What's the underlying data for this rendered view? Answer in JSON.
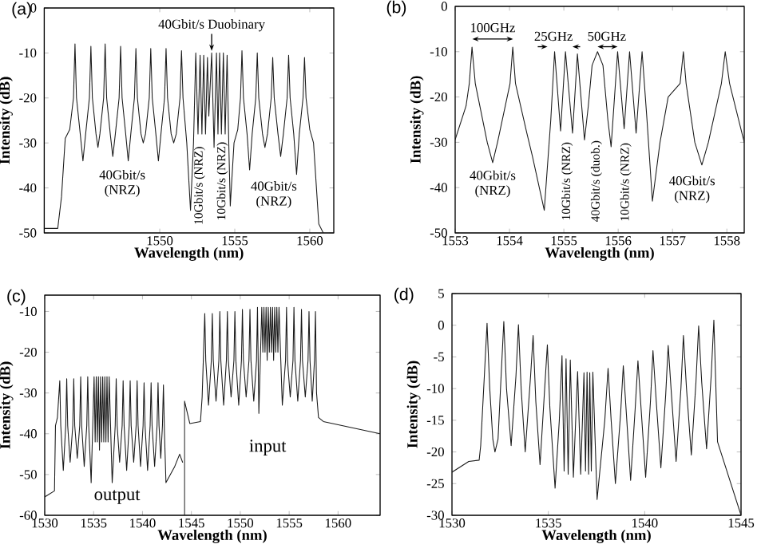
{
  "chart_data": [
    {
      "type": "line",
      "title": "(a)",
      "xlabel": "Wavelength (nm)",
      "ylabel": "Intensity (dB)",
      "xlim": [
        1542.3,
        1561.6
      ],
      "ylim": [
        -50,
        0
      ],
      "xticks": [
        1550,
        1555,
        1560
      ],
      "yticks": [
        -50,
        -40,
        -30,
        -20,
        -10,
        0
      ],
      "series": [
        {
          "color": "#1a1a1a",
          "x": [
            1542.3,
            1543.2,
            1543.45,
            1543.7,
            1544.0,
            1544.25,
            1544.35,
            1544.45,
            1544.7,
            1544.88,
            1545.06,
            1545.31,
            1545.41,
            1545.51,
            1545.75,
            1545.88,
            1546.01,
            1546.26,
            1546.36,
            1546.46,
            1546.7,
            1546.87,
            1547.04,
            1547.29,
            1547.39,
            1547.49,
            1547.73,
            1547.9,
            1548.07,
            1548.31,
            1548.41,
            1548.51,
            1548.75,
            1548.9,
            1549.05,
            1549.3,
            1549.4,
            1549.5,
            1549.74,
            1549.91,
            1550.08,
            1550.32,
            1550.42,
            1550.52,
            1550.76,
            1550.93,
            1551.1,
            1551.35,
            1551.45,
            1551.55,
            1551.8,
            1552.05,
            1552.25,
            1552.4,
            1552.55,
            1552.69,
            1552.81,
            1552.93,
            1553.05,
            1553.18,
            1553.27,
            1553.46,
            1553.62,
            1553.78,
            1553.88,
            1553.99,
            1554.11,
            1554.24,
            1554.36,
            1554.49,
            1554.6,
            1554.7,
            1554.95,
            1555.2,
            1555.38,
            1555.48,
            1555.58,
            1555.82,
            1555.99,
            1556.16,
            1556.4,
            1556.5,
            1556.6,
            1556.85,
            1557.01,
            1557.18,
            1557.43,
            1557.53,
            1557.63,
            1557.88,
            1558.06,
            1558.24,
            1558.49,
            1558.59,
            1558.69,
            1558.93,
            1559.12,
            1559.3,
            1559.55,
            1559.65,
            1559.75,
            1560.0,
            1560.25,
            1560.6,
            1560.9
          ],
          "values": [
            -49,
            -49,
            -42,
            -29,
            -27,
            -20,
            -8,
            -20,
            -28,
            -34,
            -28,
            -20,
            -8.5,
            -20,
            -28,
            -31,
            -28,
            -20,
            -8,
            -20,
            -28,
            -33,
            -28,
            -20,
            -8.5,
            -20,
            -28,
            -34,
            -28,
            -20,
            -9,
            -20,
            -28,
            -30,
            -28,
            -20,
            -9,
            -20,
            -28,
            -34,
            -28,
            -20,
            -9,
            -20,
            -28,
            -30,
            -28,
            -20,
            -9.5,
            -20,
            -30,
            -45,
            -30,
            -10,
            -28,
            -10.5,
            -28,
            -10.5,
            -28,
            -11,
            -24,
            -10,
            -31,
            -10,
            -28,
            -10,
            -28,
            -10,
            -28,
            -10.5,
            -30,
            -44,
            -30,
            -27,
            -20,
            -9.5,
            -20,
            -28,
            -36,
            -28,
            -20,
            -10,
            -20,
            -28,
            -31,
            -28,
            -20,
            -11,
            -20,
            -28,
            -33,
            -28,
            -20,
            -10.5,
            -20,
            -28,
            -37,
            -28,
            -20,
            -11,
            -20,
            -27,
            -30,
            -48,
            -50
          ]
        }
      ],
      "annotations": [
        {
          "text": "40Gbit/s Duobinary",
          "x": 1553.46,
          "y": -10
        },
        "40Gbit/s (NRZ)",
        "10Gbit/s (NRZ)",
        "10Gbit/s (NRZ)",
        "40Gbit/s (NRZ)"
      ]
    },
    {
      "type": "line",
      "title": "(b)",
      "xlabel": "Wavelength (nm)",
      "ylabel": "Intensity (dB)",
      "xlim": [
        1553,
        1558.32
      ],
      "ylim": [
        -50,
        0
      ],
      "xticks": [
        1553,
        1554,
        1555,
        1556,
        1557,
        1558
      ],
      "yticks": [
        -50,
        -40,
        -30,
        -20,
        -10,
        0
      ],
      "series": [
        {
          "color": "#1a1a1a",
          "x": [
            1553.0,
            1553.2,
            1553.26,
            1553.31,
            1553.37,
            1553.59,
            1553.69,
            1553.78,
            1554.01,
            1554.06,
            1554.11,
            1554.32,
            1554.42,
            1554.64,
            1554.76,
            1554.83,
            1554.94,
            1555.03,
            1555.16,
            1555.25,
            1555.38,
            1555.45,
            1555.52,
            1555.62,
            1555.72,
            1555.81,
            1555.87,
            1555.99,
            1556.11,
            1556.21,
            1556.33,
            1556.44,
            1556.53,
            1556.63,
            1556.77,
            1556.92,
            1557.14,
            1557.2,
            1557.25,
            1557.41,
            1557.54,
            1557.66,
            1557.9,
            1557.97,
            1558.05,
            1558.32
          ],
          "values": [
            -29.4,
            -22,
            -17,
            -9,
            -17,
            -30,
            -34.5,
            -30,
            -17,
            -9,
            -17,
            -28,
            -33,
            -45,
            -25,
            -10,
            -27.5,
            -10,
            -28,
            -10.5,
            -29.5,
            -22,
            -13,
            -10,
            -13,
            -25,
            -31,
            -10,
            -27,
            -10,
            -28,
            -10,
            -25,
            -43,
            -30,
            -20,
            -17,
            -10,
            -17,
            -30,
            -35,
            -30,
            -17,
            -10,
            -17,
            -30
          ]
        }
      ],
      "annotations": [
        "100GHz",
        "25GHz",
        "50GHz",
        "40Gbit/s (NRZ)",
        "10Gbit/s (NRZ)",
        "40Gbit/s (duob.)",
        "10Gbit/s (NRZ)",
        "40Gbit/s (NRZ)"
      ]
    },
    {
      "type": "line",
      "title": "(c)",
      "xlabel": "Wavelength (nm)",
      "ylabel": "Intensity (dB)",
      "xlim": [
        1530,
        1564.3
      ],
      "ylim": [
        -60,
        -6
      ],
      "xticks": [
        1530,
        1535,
        1540,
        1545,
        1550,
        1555,
        1560
      ],
      "yticks": [
        -60,
        -50,
        -40,
        -30,
        -20,
        -10
      ],
      "series": [
        {
          "color": "#1a1a1a",
          "x": [
            1530,
            1531.0,
            1531.1,
            1531.3,
            1531.54,
            1531.64,
            1531.9,
            1532.15,
            1532.25,
            1532.35,
            1532.6,
            1532.87,
            1532.97,
            1533.07,
            1533.33,
            1533.58,
            1533.68,
            1533.78,
            1534.04,
            1534.3,
            1534.4,
            1534.5,
            1534.75,
            1535.05,
            1535.16,
            1535.27,
            1535.38,
            1535.49,
            1535.6,
            1535.71,
            1535.82,
            1535.93,
            1536.04,
            1536.15,
            1536.26,
            1536.37,
            1536.48,
            1536.59,
            1536.9,
            1537.21,
            1537.31,
            1537.41,
            1537.66,
            1537.92,
            1538.02,
            1538.12,
            1538.38,
            1538.64,
            1538.74,
            1538.84,
            1539.1,
            1539.35,
            1539.45,
            1539.55,
            1539.8,
            1540.06,
            1540.16,
            1540.26,
            1540.52,
            1540.78,
            1540.88,
            1540.98,
            1541.24,
            1541.49,
            1541.59,
            1541.69,
            1541.87,
            1542.04,
            1542.14,
            1542.25,
            1542.4,
            1543.3,
            1543.8,
            1544.1
          ],
          "values": [
            -55.5,
            -54,
            -38,
            -36,
            -27,
            -38,
            -49,
            -38,
            -26.5,
            -38,
            -47,
            -38,
            -26.5,
            -38,
            -46,
            -38,
            -26,
            -38,
            -48,
            -38,
            -26,
            -38,
            -52,
            -26,
            -42,
            -26,
            -42,
            -26,
            -44,
            -26,
            -42,
            -26,
            -42,
            -26,
            -42,
            -26,
            -42,
            -26,
            -52,
            -38,
            -26.5,
            -38,
            -47,
            -38,
            -27,
            -38,
            -49,
            -38,
            -27,
            -38,
            -47,
            -38,
            -27,
            -38,
            -48,
            -38,
            -27.5,
            -38,
            -49,
            -38,
            -27.5,
            -38,
            -48,
            -38,
            -27.5,
            -38,
            -46,
            -38,
            -28,
            -40,
            -52,
            -48,
            -45,
            -47
          ]
        },
        {
          "color": "#1a1a1a",
          "x": [
            1544.3,
            1544.3,
            1544.84,
            1545.93,
            1546.1,
            1546.37,
            1546.47,
            1546.75,
            1547.04,
            1547.14,
            1547.24,
            1547.52,
            1547.81,
            1547.91,
            1548.01,
            1548.3,
            1548.58,
            1548.68,
            1548.78,
            1549.06,
            1549.35,
            1549.45,
            1549.55,
            1549.84,
            1550.12,
            1550.22,
            1550.32,
            1550.6,
            1550.89,
            1550.99,
            1551.09,
            1551.38,
            1551.66,
            1551.76,
            1551.9,
            1552.2,
            1552.31,
            1552.42,
            1552.53,
            1552.64,
            1552.75,
            1552.86,
            1552.97,
            1553.08,
            1553.19,
            1553.3,
            1553.41,
            1553.52,
            1553.63,
            1553.74,
            1553.85,
            1553.96,
            1554.3,
            1554.63,
            1554.73,
            1554.83,
            1555.11,
            1555.39,
            1555.49,
            1555.59,
            1555.88,
            1556.16,
            1556.26,
            1556.36,
            1556.65,
            1556.93,
            1557.03,
            1557.13,
            1557.36,
            1557.59,
            1557.69,
            1557.8,
            1558.0,
            1558.5,
            1564.3
          ],
          "values": [
            -60,
            -32,
            -37.5,
            -37,
            -31,
            -10.5,
            -22,
            -33,
            -22,
            -10.5,
            -22,
            -32,
            -22,
            -10,
            -22,
            -33,
            -22,
            -10,
            -22,
            -31,
            -22,
            -10,
            -22,
            -33,
            -22,
            -9.5,
            -22,
            -31,
            -22,
            -9.5,
            -22,
            -32,
            -22,
            -9,
            -35,
            -9,
            -20,
            -9,
            -20,
            -9,
            -22,
            -9,
            -20,
            -9,
            -20,
            -9,
            -22,
            -9,
            -20,
            -9,
            -20,
            -9,
            -33,
            -22,
            -9,
            -22,
            -31,
            -22,
            -9,
            -22,
            -32,
            -22,
            -9.5,
            -22,
            -31,
            -22,
            -10,
            -22,
            -32,
            -22,
            -10,
            -30,
            -36,
            -37,
            -40
          ]
        }
      ],
      "annotations": [
        "output",
        "input"
      ]
    },
    {
      "type": "line",
      "title": "(d)",
      "xlabel": "Wavelength (nm)",
      "ylabel": "Intensity (dB)",
      "xlim": [
        1530,
        1545
      ],
      "ylim": [
        -30,
        5
      ],
      "xticks": [
        1530,
        1535,
        1540,
        1545
      ],
      "yticks": [
        -30,
        -25,
        -20,
        -15,
        -10,
        -5,
        0,
        5
      ],
      "series": [
        {
          "color": "#1a1a1a",
          "x": [
            1530.0,
            1530.87,
            1531.41,
            1531.49,
            1531.68,
            1531.82,
            1531.96,
            1532.12,
            1532.23,
            1532.39,
            1532.55,
            1532.69,
            1532.83,
            1533.07,
            1533.32,
            1533.45,
            1533.59,
            1533.8,
            1534.08,
            1534.21,
            1534.35,
            1534.57,
            1534.81,
            1534.95,
            1535.08,
            1535.35,
            1535.57,
            1535.71,
            1535.82,
            1535.92,
            1536.03,
            1536.14,
            1536.3,
            1536.52,
            1536.68,
            1536.85,
            1536.93,
            1537.01,
            1537.09,
            1537.15,
            1537.23,
            1537.31,
            1537.53,
            1537.93,
            1538.1,
            1538.26,
            1538.48,
            1538.75,
            1538.89,
            1539.05,
            1539.27,
            1539.51,
            1539.65,
            1539.81,
            1540.05,
            1540.3,
            1540.43,
            1540.6,
            1540.84,
            1541.09,
            1541.22,
            1541.39,
            1541.63,
            1541.88,
            1542.01,
            1542.17,
            1542.42,
            1542.66,
            1542.8,
            1542.96,
            1543.21,
            1543.45,
            1543.59,
            1543.78,
            1545.0
          ],
          "values": [
            -23.2,
            -21.5,
            -21.3,
            -19,
            -8,
            0.3,
            -10,
            -18,
            -20,
            -18,
            -8,
            0.6,
            -10,
            -19,
            -8,
            0.1,
            -10,
            -20,
            -8,
            -1.6,
            -12,
            -22,
            -10,
            -3.1,
            -13,
            -25.7,
            -15,
            -4.8,
            -23,
            -5.3,
            -23.5,
            -5.5,
            -24,
            -7.3,
            -23.5,
            -7.5,
            -23,
            -7.4,
            -23.5,
            -7.5,
            -23,
            -7.4,
            -27.5,
            -15,
            -6.8,
            -15,
            -25,
            -14,
            -6.4,
            -14,
            -24.5,
            -13,
            -5.6,
            -13,
            -24,
            -12,
            -4.0,
            -12,
            -22.5,
            -11,
            -3.2,
            -11,
            -21.5,
            -10,
            -1.6,
            -10,
            -20.5,
            -9,
            -0.1,
            -9,
            -19.5,
            -8,
            0.8,
            -18.4,
            -30
          ]
        }
      ]
    }
  ]
}
